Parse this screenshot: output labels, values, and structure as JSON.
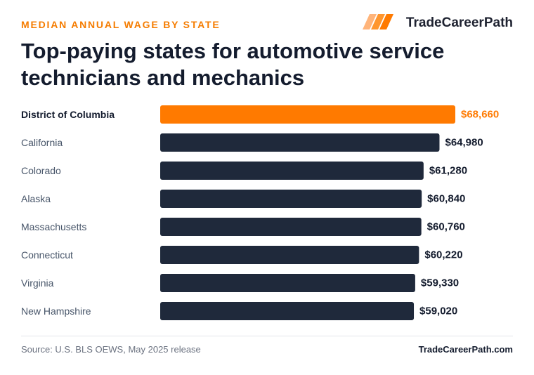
{
  "header": {
    "eyebrow": "MEDIAN ANNUAL WAGE BY STATE",
    "brand_name": "TradeCareerPath",
    "brand_icon": "stripes-logo-icon",
    "title": "Top-paying states for automotive service technicians and mechanics"
  },
  "colors": {
    "accent": "#ff7a00",
    "bar": "#1f293b",
    "text_dark": "#141c2e",
    "text_muted": "#475569"
  },
  "chart_data": {
    "type": "bar",
    "orientation": "horizontal",
    "categories": [
      "District of Columbia",
      "California",
      "Colorado",
      "Alaska",
      "Massachusetts",
      "Connecticut",
      "Virginia",
      "New Hampshire"
    ],
    "values": [
      68660,
      64980,
      61280,
      60840,
      60760,
      60220,
      59330,
      59020
    ],
    "value_labels": [
      "$68,660",
      "$64,980",
      "$61,280",
      "$60,840",
      "$60,760",
      "$60,220",
      "$59,330",
      "$59,020"
    ],
    "highlight_index": 0,
    "xlim": [
      0,
      68660
    ],
    "grid": false,
    "legend": "none"
  },
  "footer": {
    "source": "Source: U.S. BLS OEWS, May 2025 release",
    "site": "TradeCareerPath.com"
  }
}
